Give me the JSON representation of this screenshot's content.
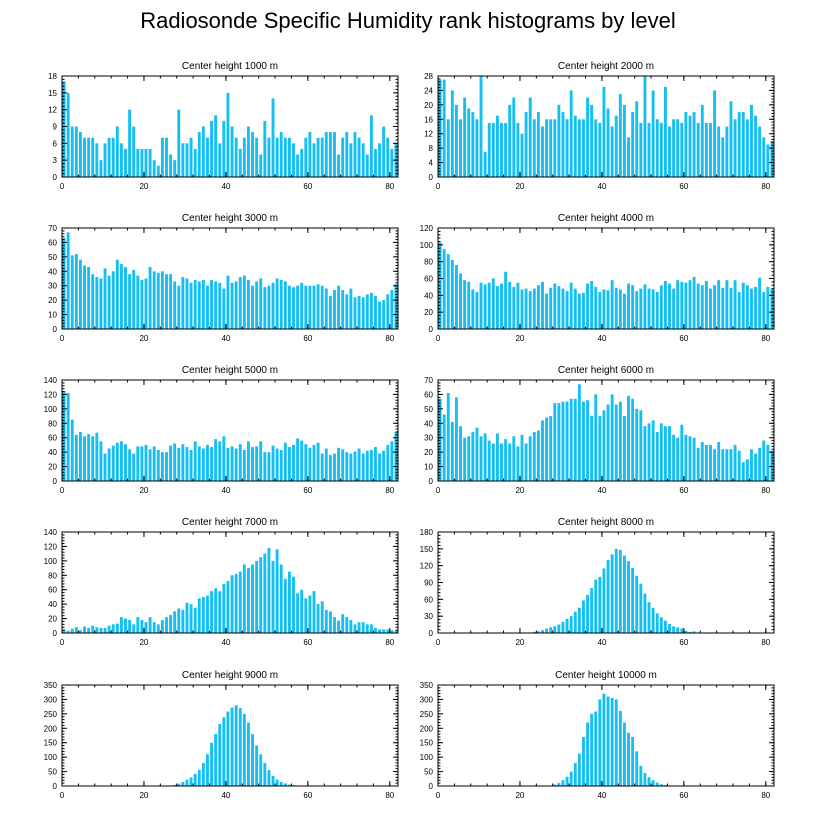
{
  "title": "Radiosonde Specific Humidity rank histograms by level",
  "bar_color": "#16bff2",
  "chart_data": [
    {
      "type": "bar",
      "title": "Center height 1000 m",
      "x_range": [
        0,
        82
      ],
      "ylim": [
        0,
        18
      ],
      "yticks": [
        0,
        3,
        6,
        9,
        12,
        15,
        18
      ],
      "xticks": [
        0,
        20,
        40,
        60,
        80
      ],
      "values": [
        17,
        15,
        9,
        9,
        8,
        7,
        7,
        7,
        6,
        3,
        6,
        7,
        7,
        9,
        6,
        5,
        12,
        9,
        5,
        5,
        5,
        5,
        3,
        2,
        7,
        7,
        4,
        3,
        12,
        6,
        6,
        7,
        5,
        8,
        9,
        7,
        10,
        11,
        6,
        10,
        15,
        9,
        7,
        5,
        7,
        9,
        8,
        7,
        4,
        10,
        7,
        14,
        7,
        8,
        7,
        7,
        6,
        4,
        5,
        7,
        8,
        6,
        7,
        7,
        8,
        8,
        8,
        4,
        7,
        8,
        6,
        8,
        7,
        6,
        4,
        11,
        5,
        6,
        9,
        7,
        5,
        6
      ]
    },
    {
      "type": "bar",
      "title": "Center height 2000 m",
      "x_range": [
        0,
        82
      ],
      "ylim": [
        0,
        28
      ],
      "yticks": [
        0,
        4,
        8,
        12,
        16,
        20,
        24,
        28
      ],
      "xticks": [
        0,
        20,
        40,
        60,
        80
      ],
      "values": [
        27,
        27,
        16,
        24,
        20,
        16,
        22,
        19,
        18,
        16,
        28,
        7,
        15,
        15,
        17,
        15,
        15,
        20,
        22,
        15,
        12,
        18,
        22,
        16,
        18,
        14,
        16,
        16,
        16,
        20,
        18,
        16,
        24,
        17,
        16,
        16,
        22,
        20,
        16,
        15,
        25,
        19,
        14,
        17,
        23,
        20,
        11,
        18,
        21,
        15,
        28,
        15,
        24,
        16,
        15,
        25,
        14,
        16,
        16,
        15,
        18,
        17,
        18,
        15,
        20,
        15,
        15,
        24,
        14,
        11,
        14,
        21,
        16,
        18,
        18,
        16,
        20,
        17,
        14,
        11,
        9,
        10
      ]
    },
    {
      "type": "bar",
      "title": "Center height 3000 m",
      "x_range": [
        0,
        82
      ],
      "ylim": [
        0,
        70
      ],
      "yticks": [
        0,
        10,
        20,
        30,
        40,
        50,
        60,
        70
      ],
      "xticks": [
        0,
        20,
        40,
        60,
        80
      ],
      "values": [
        63,
        67,
        51,
        52,
        48,
        44,
        43,
        38,
        36,
        35,
        42,
        37,
        40,
        48,
        45,
        43,
        38,
        41,
        37,
        34,
        35,
        43,
        40,
        39,
        40,
        38,
        38,
        33,
        30,
        36,
        35,
        32,
        34,
        33,
        34,
        30,
        34,
        33,
        32,
        28,
        37,
        32,
        33,
        36,
        37,
        34,
        30,
        33,
        35,
        29,
        30,
        32,
        35,
        34,
        33,
        30,
        29,
        30,
        32,
        30,
        30,
        30,
        31,
        30,
        28,
        23,
        27,
        30,
        27,
        24,
        28,
        22,
        23,
        22,
        24,
        25,
        23,
        19,
        20,
        24,
        27,
        31
      ]
    },
    {
      "type": "bar",
      "title": "Center height 4000 m",
      "x_range": [
        0,
        82
      ],
      "ylim": [
        0,
        120
      ],
      "yticks": [
        0,
        20,
        40,
        60,
        80,
        100,
        120
      ],
      "xticks": [
        0,
        20,
        40,
        60,
        80
      ],
      "values": [
        103,
        95,
        89,
        82,
        76,
        66,
        58,
        56,
        47,
        44,
        55,
        53,
        55,
        60,
        51,
        54,
        68,
        56,
        50,
        55,
        47,
        48,
        45,
        48,
        52,
        56,
        42,
        49,
        54,
        51,
        48,
        45,
        55,
        48,
        42,
        43,
        54,
        57,
        50,
        44,
        47,
        46,
        58,
        49,
        47,
        42,
        54,
        52,
        45,
        48,
        53,
        48,
        47,
        44,
        52,
        57,
        54,
        48,
        58,
        56,
        55,
        58,
        62,
        54,
        52,
        57,
        48,
        52,
        58,
        49,
        58,
        49,
        58,
        44,
        55,
        52,
        48,
        50,
        61,
        44,
        50,
        48
      ]
    },
    {
      "type": "bar",
      "title": "Center height 5000 m",
      "x_range": [
        0,
        82
      ],
      "ylim": [
        0,
        140
      ],
      "yticks": [
        0,
        20,
        40,
        60,
        80,
        100,
        120,
        140
      ],
      "xticks": [
        0,
        20,
        40,
        60,
        80
      ],
      "values": [
        125,
        122,
        85,
        64,
        68,
        62,
        65,
        62,
        67,
        55,
        38,
        45,
        49,
        53,
        55,
        51,
        44,
        38,
        48,
        48,
        50,
        44,
        48,
        43,
        40,
        40,
        49,
        52,
        46,
        51,
        47,
        43,
        55,
        48,
        45,
        50,
        47,
        58,
        55,
        62,
        46,
        48,
        45,
        51,
        43,
        55,
        47,
        48,
        55,
        40,
        40,
        49,
        45,
        43,
        53,
        47,
        50,
        59,
        56,
        51,
        46,
        50,
        53,
        38,
        45,
        36,
        38,
        46,
        44,
        40,
        38,
        41,
        45,
        38,
        42,
        43,
        47,
        38,
        42,
        50,
        55,
        68
      ]
    },
    {
      "type": "bar",
      "title": "Center height 6000 m",
      "x_range": [
        0,
        82
      ],
      "ylim": [
        0,
        70
      ],
      "yticks": [
        0,
        10,
        20,
        30,
        40,
        50,
        60,
        70
      ],
      "xticks": [
        0,
        20,
        40,
        60,
        80
      ],
      "values": [
        57,
        46,
        61,
        41,
        58,
        38,
        30,
        31,
        34,
        37,
        31,
        33,
        28,
        26,
        33,
        26,
        29,
        26,
        31,
        24,
        32,
        26,
        31,
        34,
        35,
        42,
        44,
        45,
        54,
        54,
        55,
        55,
        57,
        57,
        67,
        55,
        56,
        45,
        60,
        45,
        49,
        53,
        60,
        53,
        55,
        45,
        59,
        57,
        50,
        49,
        38,
        40,
        42,
        34,
        40,
        38,
        38,
        32,
        30,
        39,
        32,
        31,
        30,
        23,
        27,
        25,
        25,
        22,
        27,
        22,
        22,
        22,
        25,
        21,
        13,
        15,
        22,
        19,
        23,
        28,
        25,
        21
      ]
    },
    {
      "type": "bar",
      "title": "Center height 7000 m",
      "x_range": [
        0,
        82
      ],
      "ylim": [
        0,
        140
      ],
      "yticks": [
        0,
        20,
        40,
        60,
        80,
        100,
        120,
        140
      ],
      "xticks": [
        0,
        20,
        40,
        60,
        80
      ],
      "values": [
        5,
        3,
        6,
        8,
        4,
        9,
        7,
        10,
        8,
        7,
        7,
        10,
        12,
        13,
        22,
        20,
        18,
        12,
        22,
        18,
        15,
        22,
        15,
        12,
        18,
        22,
        25,
        30,
        34,
        32,
        42,
        40,
        35,
        48,
        50,
        52,
        58,
        62,
        58,
        68,
        72,
        80,
        82,
        85,
        95,
        90,
        95,
        100,
        105,
        110,
        118,
        100,
        116,
        95,
        75,
        85,
        78,
        55,
        60,
        48,
        52,
        58,
        40,
        44,
        32,
        30,
        22,
        17,
        26,
        22,
        18,
        12,
        15,
        15,
        12,
        12,
        7,
        5,
        5,
        5,
        4,
        3
      ]
    },
    {
      "type": "bar",
      "title": "Center height 8000 m",
      "x_range": [
        0,
        82
      ],
      "ylim": [
        0,
        180
      ],
      "yticks": [
        0,
        30,
        60,
        90,
        120,
        150,
        180
      ],
      "xticks": [
        0,
        20,
        40,
        60,
        80
      ],
      "values": [
        0,
        0,
        0,
        0,
        0,
        0,
        0,
        0,
        0,
        0,
        0,
        0,
        0,
        0,
        0,
        0,
        0,
        0,
        0,
        0,
        0,
        0,
        1,
        2,
        3,
        5,
        8,
        10,
        12,
        15,
        20,
        25,
        30,
        38,
        45,
        58,
        68,
        80,
        95,
        100,
        115,
        130,
        140,
        150,
        148,
        138,
        128,
        116,
        102,
        88,
        70,
        55,
        45,
        35,
        28,
        22,
        16,
        12,
        10,
        8,
        4,
        2,
        3,
        1,
        1,
        1,
        0,
        0,
        0,
        0,
        0,
        0,
        0,
        0,
        0,
        0,
        0,
        0,
        0,
        0,
        0,
        0
      ]
    },
    {
      "type": "bar",
      "title": "Center height 9000 m",
      "x_range": [
        0,
        82
      ],
      "ylim": [
        0,
        350
      ],
      "yticks": [
        0,
        50,
        100,
        150,
        200,
        250,
        300,
        350
      ],
      "xticks": [
        0,
        20,
        40,
        60,
        80
      ],
      "values": [
        0,
        0,
        0,
        0,
        0,
        0,
        0,
        0,
        0,
        0,
        0,
        0,
        0,
        0,
        0,
        0,
        0,
        0,
        0,
        0,
        0,
        0,
        0,
        0,
        0,
        1,
        2,
        4,
        8,
        14,
        22,
        30,
        42,
        56,
        80,
        110,
        150,
        180,
        215,
        238,
        258,
        272,
        280,
        270,
        250,
        220,
        180,
        140,
        110,
        80,
        55,
        35,
        22,
        14,
        9,
        5,
        3,
        2,
        1,
        1,
        0,
        0,
        0,
        0,
        0,
        0,
        0,
        0,
        0,
        0,
        0,
        0,
        0,
        0,
        0,
        0,
        0,
        0,
        0,
        0,
        0,
        0
      ]
    },
    {
      "type": "bar",
      "title": "Center height 10000 m",
      "x_range": [
        0,
        82
      ],
      "ylim": [
        0,
        350
      ],
      "yticks": [
        0,
        50,
        100,
        150,
        200,
        250,
        300,
        350
      ],
      "xticks": [
        0,
        20,
        40,
        60,
        80
      ],
      "values": [
        0,
        0,
        0,
        0,
        0,
        0,
        0,
        0,
        0,
        0,
        0,
        0,
        0,
        0,
        0,
        0,
        0,
        0,
        0,
        0,
        0,
        0,
        0,
        0,
        0,
        0,
        1,
        2,
        5,
        10,
        20,
        32,
        50,
        80,
        112,
        170,
        220,
        250,
        258,
        300,
        320,
        310,
        305,
        300,
        260,
        220,
        185,
        170,
        120,
        70,
        45,
        30,
        20,
        12,
        6,
        3,
        1,
        1,
        0,
        0,
        0,
        0,
        0,
        0,
        0,
        0,
        0,
        0,
        0,
        0,
        0,
        0,
        0,
        0,
        0,
        0,
        0,
        0,
        0,
        0,
        0,
        0
      ]
    }
  ]
}
